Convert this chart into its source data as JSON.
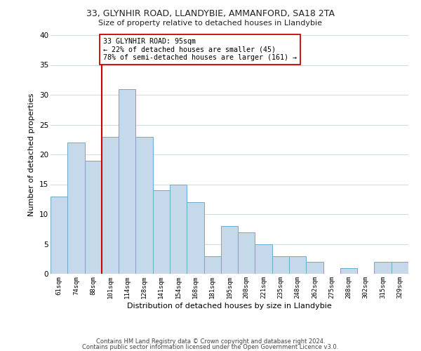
{
  "title": "33, GLYNHIR ROAD, LLANDYBIE, AMMANFORD, SA18 2TA",
  "subtitle": "Size of property relative to detached houses in Llandybie",
  "xlabel": "Distribution of detached houses by size in Llandybie",
  "ylabel": "Number of detached properties",
  "bin_labels": [
    "61sqm",
    "74sqm",
    "88sqm",
    "101sqm",
    "114sqm",
    "128sqm",
    "141sqm",
    "154sqm",
    "168sqm",
    "181sqm",
    "195sqm",
    "208sqm",
    "221sqm",
    "235sqm",
    "248sqm",
    "262sqm",
    "275sqm",
    "288sqm",
    "302sqm",
    "315sqm",
    "329sqm"
  ],
  "bar_heights": [
    13,
    22,
    19,
    23,
    31,
    23,
    14,
    15,
    12,
    3,
    8,
    7,
    5,
    3,
    3,
    2,
    0,
    1,
    0,
    2,
    2
  ],
  "bar_color": "#c5d9eb",
  "bar_edge_color": "#6aabcc",
  "reference_line_color": "#cc0000",
  "annotation_text": "33 GLYNHIR ROAD: 95sqm\n← 22% of detached houses are smaller (45)\n78% of semi-detached houses are larger (161) →",
  "annotation_box_color": "#ffffff",
  "annotation_box_edge": "#cc0000",
  "ylim": [
    0,
    40
  ],
  "yticks": [
    0,
    5,
    10,
    15,
    20,
    25,
    30,
    35,
    40
  ],
  "footer_line1": "Contains HM Land Registry data © Crown copyright and database right 2024.",
  "footer_line2": "Contains public sector information licensed under the Open Government Licence v3.0.",
  "bg_color": "#ffffff",
  "grid_color": "#d0dce8"
}
